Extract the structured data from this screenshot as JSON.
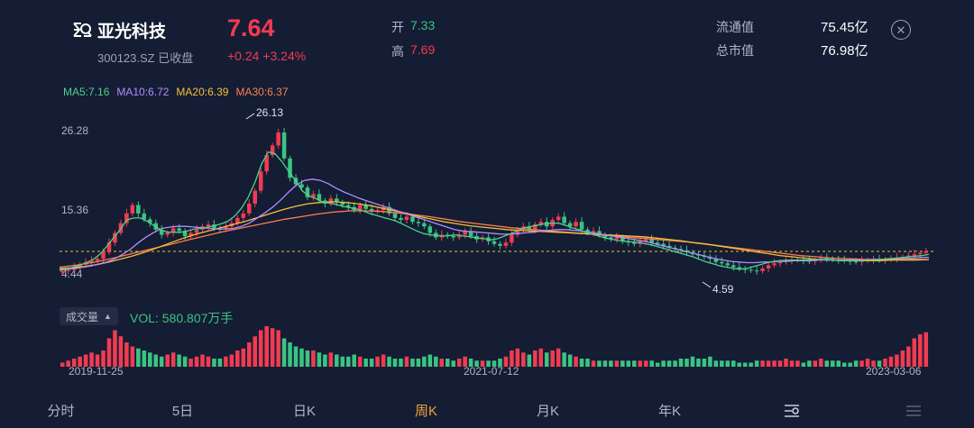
{
  "header": {
    "name": "亚光科技",
    "code_status": "300123.SZ 已收盘",
    "price": "7.64",
    "change": "+0.24 +3.24%",
    "open_label": "开",
    "open_value": "7.33",
    "high_label": "高",
    "high_value": "7.69",
    "float_cap_label": "流通值",
    "float_cap_value": "75.45亿",
    "total_cap_label": "总市值",
    "total_cap_value": "76.98亿"
  },
  "ma": {
    "ma5": "MA5:7.16",
    "ma10": "MA10:6.72",
    "ma20": "MA20:6.39",
    "ma30": "MA30:6.37",
    "colors": {
      "ma5": "#4fd18b",
      "ma10": "#b48cff",
      "ma20": "#f5c03a",
      "ma30": "#ff7f50"
    }
  },
  "chart": {
    "ymax_label": "26.28",
    "ymid_label": "15.36",
    "ymin_label": "4.44",
    "peak_label": "26.13",
    "low_label": "4.59"
  },
  "volume": {
    "label": "成交量",
    "value": "VOL: 580.807万手"
  },
  "dates": [
    "2019-11-25",
    "2021-07-12",
    "2023-03-06"
  ],
  "tabs": [
    "分时",
    "5日",
    "日K",
    "周K",
    "月K",
    "年K"
  ],
  "active_tab": "周K",
  "colors": {
    "up": "#f23b52",
    "down": "#3bc384",
    "accent": "#f3a23c",
    "bg": "#141d33"
  },
  "chart_data": {
    "type": "candlestick",
    "x_range": [
      "2019-11-25",
      "2023-03-06"
    ],
    "ylim": [
      4.44,
      26.28
    ],
    "close": [
      4.6,
      4.8,
      5.2,
      5.6,
      6.0,
      6.2,
      6.5,
      7.5,
      9.0,
      10.5,
      12.0,
      13.5,
      14.8,
      13.5,
      12.6,
      12.0,
      11.0,
      10.2,
      10.5,
      11.2,
      10.8,
      10.0,
      10.5,
      11.0,
      11.5,
      11.8,
      11.2,
      11.0,
      11.5,
      12.0,
      12.8,
      13.5,
      15.0,
      17.0,
      20.0,
      22.5,
      24.0,
      26.0,
      22.0,
      19.0,
      18.0,
      17.5,
      16.0,
      16.5,
      15.5,
      15.0,
      15.8,
      15.2,
      14.8,
      14.5,
      14.0,
      14.8,
      14.2,
      13.8,
      14.0,
      14.5,
      13.5,
      12.8,
      12.5,
      13.0,
      12.2,
      12.0,
      11.5,
      10.5,
      9.8,
      10.2,
      10.0,
      9.8,
      10.2,
      10.8,
      10.0,
      9.5,
      9.8,
      9.2,
      8.8,
      8.5,
      9.0,
      10.2,
      11.0,
      11.5,
      11.0,
      11.8,
      12.2,
      11.5,
      12.5,
      13.0,
      12.0,
      11.5,
      12.2,
      11.0,
      10.5,
      10.8,
      10.2,
      9.8,
      9.5,
      9.8,
      9.2,
      9.0,
      8.8,
      9.2,
      9.5,
      9.0,
      8.8,
      8.5,
      8.2,
      8.0,
      7.8,
      7.5,
      7.2,
      7.0,
      6.8,
      6.5,
      6.0,
      5.8,
      5.5,
      5.2,
      5.0,
      4.8,
      4.7,
      4.6,
      5.0,
      5.5,
      5.8,
      6.0,
      6.2,
      6.3,
      6.4,
      6.2,
      6.1,
      6.3,
      6.6,
      6.5,
      6.4,
      6.3,
      6.2,
      6.1,
      6.0,
      6.2,
      6.3,
      6.4,
      6.3,
      6.4,
      6.5,
      6.7,
      6.8,
      7.0,
      7.2,
      7.4,
      7.64
    ],
    "volume": [
      2,
      3,
      4,
      5,
      6,
      7,
      6,
      8,
      14,
      18,
      15,
      12,
      10,
      9,
      8,
      7,
      6,
      5,
      6,
      7,
      6,
      5,
      4,
      5,
      6,
      5,
      4,
      4,
      5,
      6,
      8,
      9,
      12,
      15,
      18,
      20,
      19,
      18,
      14,
      12,
      10,
      9,
      8,
      8,
      7,
      6,
      7,
      6,
      5,
      5,
      6,
      5,
      4,
      4,
      5,
      6,
      5,
      4,
      4,
      5,
      4,
      4,
      5,
      6,
      5,
      4,
      4,
      3,
      4,
      5,
      4,
      3,
      3,
      3,
      3,
      4,
      5,
      8,
      9,
      7,
      6,
      8,
      9,
      7,
      8,
      9,
      7,
      6,
      5,
      4,
      4,
      3,
      3,
      3,
      3,
      3,
      3,
      3,
      3,
      3,
      3,
      3,
      2,
      3,
      3,
      3,
      4,
      4,
      5,
      4,
      4,
      5,
      3,
      3,
      3,
      3,
      2,
      2,
      2,
      3,
      3,
      3,
      3,
      3,
      4,
      3,
      3,
      2,
      3,
      3,
      4,
      3,
      3,
      3,
      2,
      2,
      3,
      3,
      4,
      3,
      3,
      4,
      5,
      6,
      8,
      10,
      14,
      16,
      17
    ],
    "ma5": [
      4.7,
      4.9,
      5.2,
      5.5,
      5.9,
      6.4,
      7.2,
      8.4,
      9.7,
      11.0,
      12.5,
      12.8,
      12.8,
      12.3,
      11.6,
      11.0,
      10.6,
      10.6,
      10.6,
      10.8,
      11.1,
      11.2,
      11.4,
      11.6,
      11.9,
      12.3,
      13.1,
      14.3,
      16.0,
      18.3,
      21.2,
      23.0,
      22.7,
      21.5,
      20.0,
      18.6,
      17.0,
      16.2,
      15.8,
      15.3,
      15.1,
      14.9,
      14.6,
      14.4,
      14.2,
      13.9,
      13.5,
      13.2,
      12.9,
      12.6,
      12.3,
      11.8,
      11.3,
      10.8,
      10.4,
      10.2,
      10.1,
      10.0,
      10.1,
      10.2,
      10.0,
      9.9,
      9.7,
      9.6,
      9.4,
      9.6,
      10.0,
      10.4,
      10.9,
      11.3,
      11.5,
      11.7,
      11.9,
      12.0,
      12.0,
      11.7,
      11.3,
      11.0,
      10.6,
      10.3,
      10.0,
      9.7,
      9.5,
      9.3,
      9.2,
      9.1,
      9.0,
      8.8,
      8.6,
      8.3,
      8.0,
      7.7,
      7.4,
      7.1,
      6.8,
      6.4,
      6.0,
      5.7,
      5.4,
      5.2,
      5.0,
      4.9,
      5.0,
      5.3,
      5.6,
      5.9,
      6.1,
      6.2,
      6.3,
      6.3,
      6.3,
      6.3,
      6.4,
      6.4,
      6.4,
      6.3,
      6.2,
      6.2,
      6.2,
      6.2,
      6.3,
      6.3,
      6.4,
      6.5,
      6.6,
      6.7,
      6.8,
      6.9,
      7.0,
      7.16
    ],
    "ma10": [
      4.8,
      4.9,
      5.0,
      5.2,
      5.4,
      5.7,
      6.0,
      6.5,
      7.2,
      8.0,
      9.0,
      9.9,
      10.6,
      11.2,
      11.4,
      11.5,
      11.5,
      11.4,
      11.3,
      11.2,
      11.1,
      11.1,
      11.2,
      11.5,
      12.0,
      12.8,
      13.6,
      14.5,
      15.6,
      16.8,
      17.9,
      18.6,
      18.8,
      18.6,
      18.1,
      17.4,
      16.8,
      16.3,
      15.8,
      15.4,
      15.0,
      14.6,
      14.2,
      13.8,
      13.4,
      13.0,
      12.6,
      12.2,
      11.8,
      11.4,
      11.0,
      10.8,
      10.7,
      10.6,
      10.5,
      10.4,
      10.3,
      10.3,
      10.4,
      10.5,
      10.6,
      10.8,
      10.9,
      11.0,
      11.0,
      10.9,
      10.8,
      10.6,
      10.4,
      10.2,
      10.0,
      9.8,
      9.6,
      9.4,
      9.2,
      8.9,
      8.6,
      8.3,
      8.0,
      7.7,
      7.4,
      7.1,
      6.8,
      6.5,
      6.3,
      6.1,
      6.0,
      5.9,
      5.9,
      6.0,
      6.0,
      6.1,
      6.1,
      6.2,
      6.2,
      6.2,
      6.3,
      6.3,
      6.3,
      6.3,
      6.3,
      6.3,
      6.3,
      6.4,
      6.4,
      6.5,
      6.5,
      6.6,
      6.6,
      6.7,
      6.72
    ],
    "ma20": [
      5.0,
      5.1,
      5.3,
      5.6,
      6.0,
      6.5,
      7.0,
      7.6,
      8.3,
      9.0,
      9.7,
      10.3,
      10.8,
      11.3,
      11.8,
      12.3,
      12.9,
      13.5,
      14.1,
      14.6,
      15.0,
      15.2,
      15.3,
      15.2,
      15.0,
      14.7,
      14.3,
      13.9,
      13.5,
      13.0,
      12.6,
      12.2,
      11.9,
      11.6,
      11.4,
      11.2,
      11.0,
      10.9,
      10.8,
      10.7,
      10.6,
      10.5,
      10.4,
      10.3,
      10.2,
      10.1,
      10.0,
      9.9,
      9.7,
      9.5,
      9.3,
      9.0,
      8.8,
      8.5,
      8.2,
      7.9,
      7.6,
      7.3,
      7.0,
      6.8,
      6.6,
      6.4,
      6.3,
      6.2,
      6.2,
      6.2,
      6.2,
      6.3,
      6.3,
      6.3,
      6.39
    ],
    "ma30": [
      5.2,
      5.5,
      5.9,
      6.4,
      7.0,
      7.6,
      8.2,
      8.8,
      9.4,
      10.0,
      10.6,
      11.1,
      11.6,
      12.1,
      12.6,
      13.0,
      13.4,
      13.7,
      13.9,
      13.9,
      13.8,
      13.6,
      13.3,
      13.0,
      12.6,
      12.2,
      11.9,
      11.6,
      11.3,
      11.1,
      10.9,
      10.7,
      10.5,
      10.3,
      10.1,
      9.9,
      9.7,
      9.5,
      9.3,
      9.1,
      8.8,
      8.5,
      8.2,
      7.9,
      7.6,
      7.3,
      7.0,
      6.8,
      6.6,
      6.5,
      6.4,
      6.4,
      6.4,
      6.4,
      6.37
    ]
  }
}
